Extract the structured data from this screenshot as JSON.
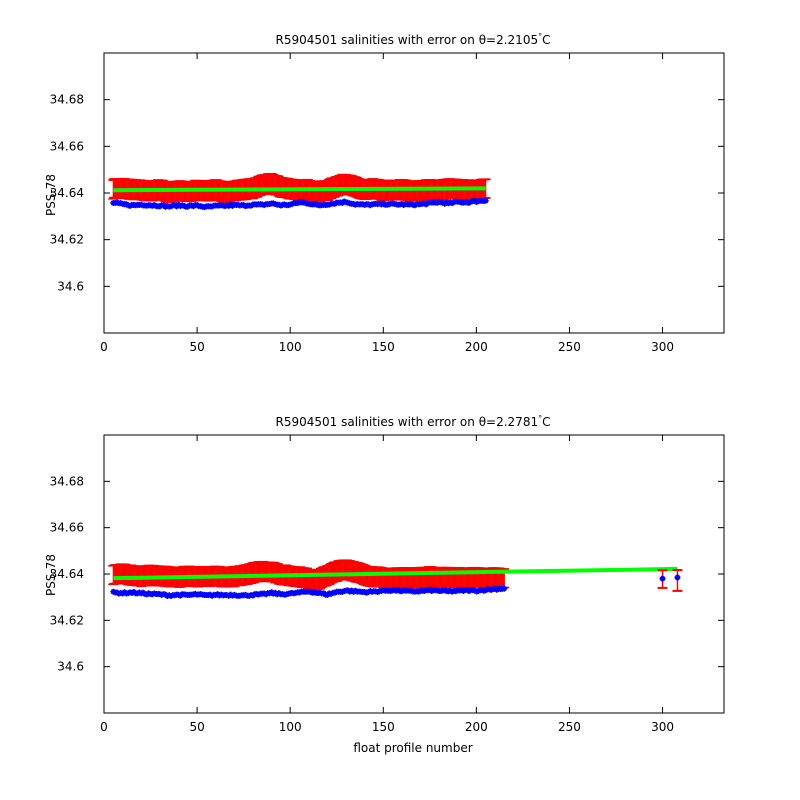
{
  "colors": {
    "background": "#ffffff",
    "axes": "#000000",
    "error_bars": "#ff0000",
    "float_salinity": "#0000ff",
    "fit_line": "#00ff00"
  },
  "chart_data": [
    {
      "type": "scatter",
      "title_prefix": "R5904501 salinities with error on θ=2.2105",
      "title_unit": "C",
      "xlabel": "",
      "ylabel": "PSS-78",
      "xlim": [
        0,
        333
      ],
      "ylim": [
        34.58,
        34.7
      ],
      "xticks": [
        0,
        50,
        100,
        150,
        200,
        250,
        300
      ],
      "yticks": [
        34.6,
        34.62,
        34.64,
        34.66,
        34.68
      ],
      "ytick_labels": [
        "34.6",
        "34.62",
        "34.64",
        "34.66",
        "34.68"
      ],
      "grid": false,
      "x_range": [
        5,
        205
      ],
      "blue_points": [
        [
          5,
          34.6358
        ],
        [
          10,
          34.6352
        ],
        [
          15,
          34.6347
        ],
        [
          20,
          34.635
        ],
        [
          25,
          34.6348
        ],
        [
          30,
          34.6346
        ],
        [
          35,
          34.6343
        ],
        [
          40,
          34.6347
        ],
        [
          45,
          34.6344
        ],
        [
          50,
          34.6346
        ],
        [
          55,
          34.634
        ],
        [
          60,
          34.6344
        ],
        [
          65,
          34.6345
        ],
        [
          70,
          34.6348
        ],
        [
          75,
          34.6346
        ],
        [
          80,
          34.635
        ],
        [
          85,
          34.6349
        ],
        [
          90,
          34.6355
        ],
        [
          95,
          34.6348
        ],
        [
          100,
          34.635
        ],
        [
          105,
          34.636
        ],
        [
          110,
          34.6356
        ],
        [
          115,
          34.6347
        ],
        [
          120,
          34.6352
        ],
        [
          125,
          34.6358
        ],
        [
          130,
          34.6362
        ],
        [
          135,
          34.6352
        ],
        [
          140,
          34.6349
        ],
        [
          145,
          34.6351
        ],
        [
          150,
          34.6353
        ],
        [
          155,
          34.6352
        ],
        [
          160,
          34.6351
        ],
        [
          165,
          34.635
        ],
        [
          170,
          34.6352
        ],
        [
          175,
          34.6356
        ],
        [
          180,
          34.6361
        ],
        [
          185,
          34.6355
        ],
        [
          190,
          34.6362
        ],
        [
          195,
          34.636
        ],
        [
          200,
          34.6365
        ],
        [
          205,
          34.6368
        ]
      ],
      "red_points": [
        [
          5,
          34.6418
        ],
        [
          10,
          34.642
        ],
        [
          15,
          34.6415
        ],
        [
          20,
          34.6412
        ],
        [
          25,
          34.6408
        ],
        [
          30,
          34.6415
        ],
        [
          35,
          34.6402
        ],
        [
          40,
          34.641
        ],
        [
          45,
          34.6405
        ],
        [
          50,
          34.6412
        ],
        [
          55,
          34.6408
        ],
        [
          60,
          34.6415
        ],
        [
          65,
          34.6402
        ],
        [
          70,
          34.641
        ],
        [
          75,
          34.6415
        ],
        [
          80,
          34.6418
        ],
        [
          85,
          34.6435
        ],
        [
          90,
          34.644
        ],
        [
          95,
          34.6425
        ],
        [
          100,
          34.6418
        ],
        [
          105,
          34.6412
        ],
        [
          110,
          34.6415
        ],
        [
          115,
          34.6405
        ],
        [
          120,
          34.6412
        ],
        [
          125,
          34.643
        ],
        [
          130,
          34.644
        ],
        [
          135,
          34.6425
        ],
        [
          140,
          34.6412
        ],
        [
          145,
          34.6418
        ],
        [
          150,
          34.641
        ],
        [
          155,
          34.6412
        ],
        [
          160,
          34.6415
        ],
        [
          165,
          34.6408
        ],
        [
          170,
          34.641
        ],
        [
          175,
          34.6415
        ],
        [
          180,
          34.6412
        ],
        [
          185,
          34.6418
        ],
        [
          190,
          34.6415
        ],
        [
          195,
          34.6412
        ],
        [
          200,
          34.6415
        ],
        [
          205,
          34.6418
        ]
      ],
      "error_halfwidth": 0.004,
      "fit_line": [
        [
          5,
          34.6412
        ],
        [
          205,
          34.642
        ]
      ]
    },
    {
      "type": "scatter",
      "title_prefix": "R5904501 salinities with error on θ=2.2781",
      "title_unit": "C",
      "xlabel": "float profile number",
      "ylabel": "PSS-78",
      "xlim": [
        0,
        333
      ],
      "ylim": [
        34.58,
        34.7
      ],
      "xticks": [
        0,
        50,
        100,
        150,
        200,
        250,
        300
      ],
      "yticks": [
        34.6,
        34.62,
        34.64,
        34.66,
        34.68
      ],
      "ytick_labels": [
        "34.6",
        "34.62",
        "34.64",
        "34.66",
        "34.68"
      ],
      "grid": false,
      "x_range": [
        5,
        215
      ],
      "blue_points": [
        [
          5,
          34.632
        ],
        [
          10,
          34.6318
        ],
        [
          15,
          34.632
        ],
        [
          20,
          34.6317
        ],
        [
          25,
          34.6314
        ],
        [
          30,
          34.6312
        ],
        [
          35,
          34.6308
        ],
        [
          40,
          34.631
        ],
        [
          45,
          34.6309
        ],
        [
          50,
          34.6312
        ],
        [
          55,
          34.6307
        ],
        [
          60,
          34.631
        ],
        [
          65,
          34.6309
        ],
        [
          70,
          34.631
        ],
        [
          75,
          34.6307
        ],
        [
          80,
          34.631
        ],
        [
          85,
          34.6312
        ],
        [
          90,
          34.6318
        ],
        [
          95,
          34.6313
        ],
        [
          100,
          34.6315
        ],
        [
          105,
          34.632
        ],
        [
          110,
          34.6325
        ],
        [
          115,
          34.6318
        ],
        [
          120,
          34.6312
        ],
        [
          125,
          34.6322
        ],
        [
          130,
          34.6328
        ],
        [
          135,
          34.6325
        ],
        [
          140,
          34.6322
        ],
        [
          145,
          34.6324
        ],
        [
          150,
          34.6328
        ],
        [
          155,
          34.633
        ],
        [
          160,
          34.6328
        ],
        [
          165,
          34.6325
        ],
        [
          170,
          34.6326
        ],
        [
          175,
          34.633
        ],
        [
          180,
          34.6328
        ],
        [
          185,
          34.6325
        ],
        [
          190,
          34.6327
        ],
        [
          195,
          34.633
        ],
        [
          200,
          34.6328
        ],
        [
          205,
          34.6332
        ],
        [
          210,
          34.6335
        ],
        [
          215,
          34.6338
        ],
        [
          300,
          34.638
        ],
        [
          308,
          34.6385
        ]
      ],
      "red_points": [
        [
          5,
          34.6398
        ],
        [
          10,
          34.64
        ],
        [
          15,
          34.6395
        ],
        [
          20,
          34.639
        ],
        [
          25,
          34.6395
        ],
        [
          30,
          34.6392
        ],
        [
          35,
          34.6388
        ],
        [
          40,
          34.6385
        ],
        [
          45,
          34.6392
        ],
        [
          50,
          34.6388
        ],
        [
          55,
          34.639
        ],
        [
          60,
          34.6392
        ],
        [
          65,
          34.6385
        ],
        [
          70,
          34.6388
        ],
        [
          75,
          34.6395
        ],
        [
          80,
          34.6405
        ],
        [
          85,
          34.6412
        ],
        [
          90,
          34.641
        ],
        [
          95,
          34.6398
        ],
        [
          100,
          34.6392
        ],
        [
          105,
          34.6388
        ],
        [
          110,
          34.638
        ],
        [
          115,
          34.6375
        ],
        [
          120,
          34.6395
        ],
        [
          125,
          34.6412
        ],
        [
          130,
          34.642
        ],
        [
          135,
          34.641
        ],
        [
          140,
          34.6395
        ],
        [
          145,
          34.6388
        ],
        [
          150,
          34.6385
        ],
        [
          155,
          34.6382
        ],
        [
          160,
          34.6385
        ],
        [
          165,
          34.6383
        ],
        [
          170,
          34.6385
        ],
        [
          175,
          34.6388
        ],
        [
          180,
          34.6386
        ],
        [
          185,
          34.6385
        ],
        [
          190,
          34.6384
        ],
        [
          195,
          34.6383
        ],
        [
          200,
          34.6385
        ],
        [
          205,
          34.6382
        ],
        [
          210,
          34.6384
        ],
        [
          215,
          34.6382
        ]
      ],
      "error_halfwidth": 0.004,
      "outlier_points": [
        {
          "x": 300,
          "y": 34.6378,
          "err": 0.0038
        },
        {
          "x": 308,
          "y": 34.6372,
          "err": 0.0045
        }
      ],
      "fit_line": [
        [
          5,
          34.6382
        ],
        [
          308,
          34.6422
        ]
      ]
    }
  ]
}
